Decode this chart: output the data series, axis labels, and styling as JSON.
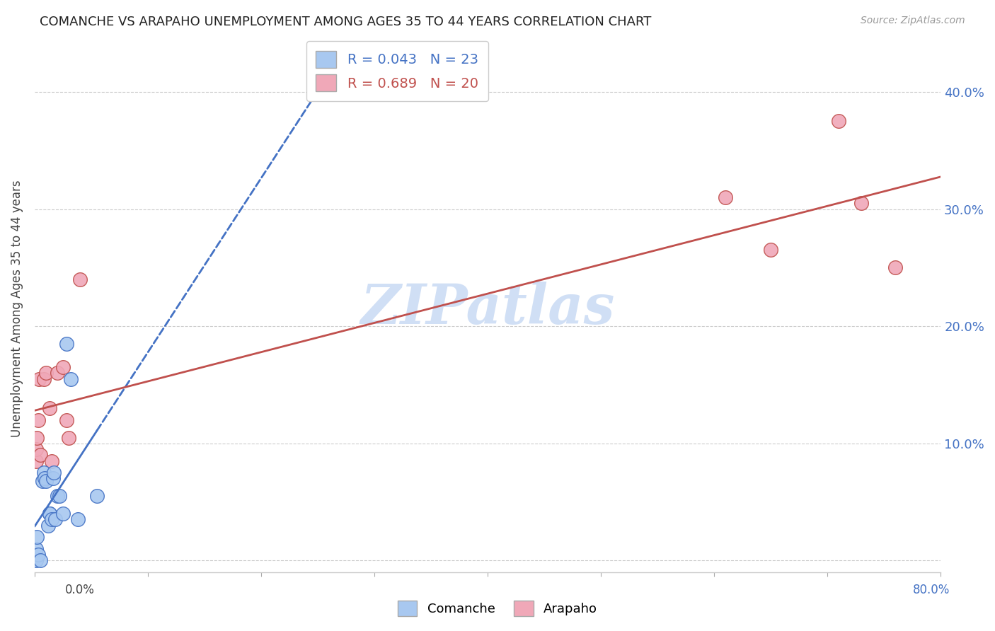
{
  "title": "COMANCHE VS ARAPAHO UNEMPLOYMENT AMONG AGES 35 TO 44 YEARS CORRELATION CHART",
  "source": "Source: ZipAtlas.com",
  "ylabel": "Unemployment Among Ages 35 to 44 years",
  "comanche_R": 0.043,
  "comanche_N": 23,
  "arapaho_R": 0.689,
  "arapaho_N": 20,
  "comanche_color": "#a8c8f0",
  "arapaho_color": "#f0a8b8",
  "comanche_color_dark": "#4472c4",
  "arapaho_color_dark": "#c0504d",
  "watermark_text": "ZIPatlas",
  "watermark_color": "#d0dff5",
  "yticks": [
    0.0,
    0.1,
    0.2,
    0.3,
    0.4
  ],
  "ytick_labels": [
    "",
    "10.0%",
    "20.0%",
    "30.0%",
    "40.0%"
  ],
  "xlim": [
    0.0,
    0.8
  ],
  "ylim": [
    -0.01,
    0.44
  ],
  "comanche_x": [
    0.001,
    0.001,
    0.002,
    0.003,
    0.005,
    0.007,
    0.008,
    0.009,
    0.01,
    0.012,
    0.013,
    0.013,
    0.015,
    0.016,
    0.017,
    0.018,
    0.02,
    0.022,
    0.025,
    0.028,
    0.032,
    0.038,
    0.055
  ],
  "comanche_y": [
    0.0,
    0.01,
    0.02,
    0.005,
    0.0,
    0.068,
    0.075,
    0.07,
    0.068,
    0.03,
    0.04,
    0.04,
    0.035,
    0.07,
    0.075,
    0.035,
    0.055,
    0.055,
    0.04,
    0.185,
    0.155,
    0.035,
    0.055
  ],
  "arapaho_x": [
    0.001,
    0.001,
    0.002,
    0.003,
    0.004,
    0.005,
    0.008,
    0.01,
    0.013,
    0.015,
    0.02,
    0.025,
    0.028,
    0.03,
    0.04,
    0.61,
    0.65,
    0.71,
    0.73,
    0.76
  ],
  "arapaho_y": [
    0.085,
    0.095,
    0.105,
    0.12,
    0.155,
    0.09,
    0.155,
    0.16,
    0.13,
    0.085,
    0.16,
    0.165,
    0.12,
    0.105,
    0.24,
    0.31,
    0.265,
    0.375,
    0.305,
    0.25
  ],
  "comanche_line_solid_end": 0.055,
  "arapaho_line_color": "#c0504d",
  "comanche_line_color": "#4472c4"
}
